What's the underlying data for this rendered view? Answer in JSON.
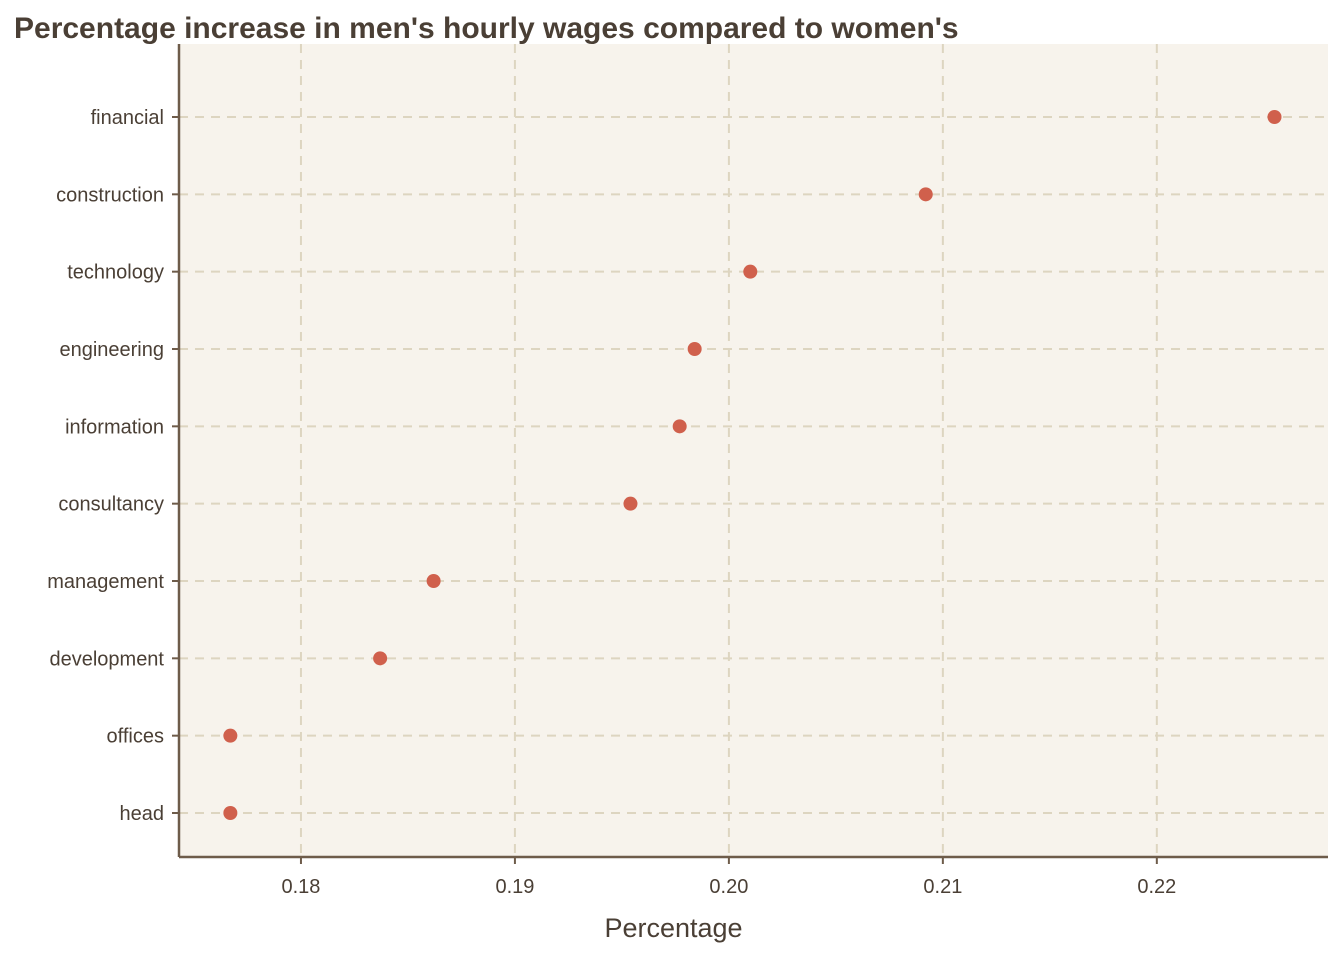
{
  "chart_data": {
    "type": "scatter",
    "title": "Percentage increase in men's hourly wages compared to women's",
    "xlabel": "Percentage",
    "ylabel": "",
    "xlim": [
      0.1743,
      0.228
    ],
    "xticks": [
      0.18,
      0.19,
      0.2,
      0.21,
      0.22
    ],
    "xtick_labels": [
      "0.18",
      "0.19",
      "0.20",
      "0.21",
      "0.22"
    ],
    "categories": [
      "financial",
      "construction",
      "technology",
      "engineering",
      "information",
      "consultancy",
      "management",
      "development",
      "offices",
      "head"
    ],
    "values": [
      0.2255,
      0.2092,
      0.201,
      0.1984,
      0.1977,
      0.1954,
      0.1862,
      0.1837,
      0.1767,
      0.1767
    ],
    "grid": true,
    "colors": {
      "point": "#d0604c",
      "background": "#f7f3ec",
      "grid": "#ddd5c0",
      "axis": "#6e5c4a",
      "text": "#4a3f35"
    }
  }
}
